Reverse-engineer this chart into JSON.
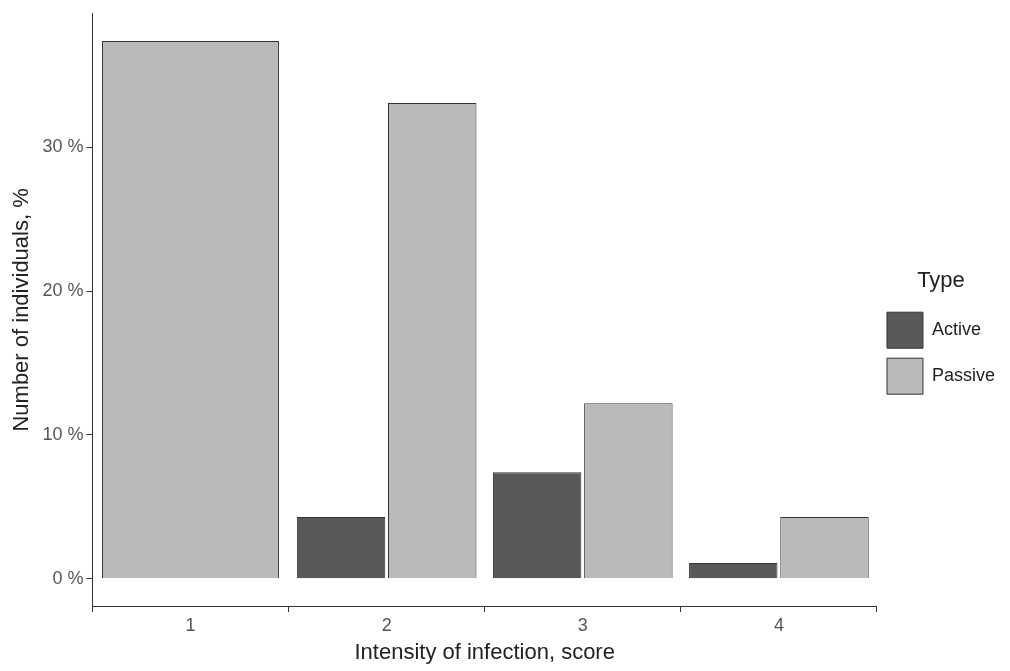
{
  "chart_data": {
    "type": "bar",
    "xlabel": "Intensity of infection, score",
    "ylabel": "Number of individuals, %",
    "legend_title": "Type",
    "categories": [
      "1",
      "2",
      "3",
      "4"
    ],
    "series": [
      {
        "name": "Active",
        "color": "#595959",
        "values": [
          null,
          4.3,
          7.4,
          1.1
        ]
      },
      {
        "name": "Passive",
        "color": "#bababa",
        "values": [
          37.4,
          33.1,
          12.2,
          4.3
        ]
      }
    ],
    "ylim": [
      -1.9,
      39.3
    ],
    "yticks": [
      {
        "value": 0,
        "label": "0 %"
      },
      {
        "value": 10,
        "label": "10 %"
      },
      {
        "value": 20,
        "label": "20 %"
      },
      {
        "value": 30,
        "label": "30 %"
      }
    ],
    "grid": false,
    "legend": "right"
  }
}
